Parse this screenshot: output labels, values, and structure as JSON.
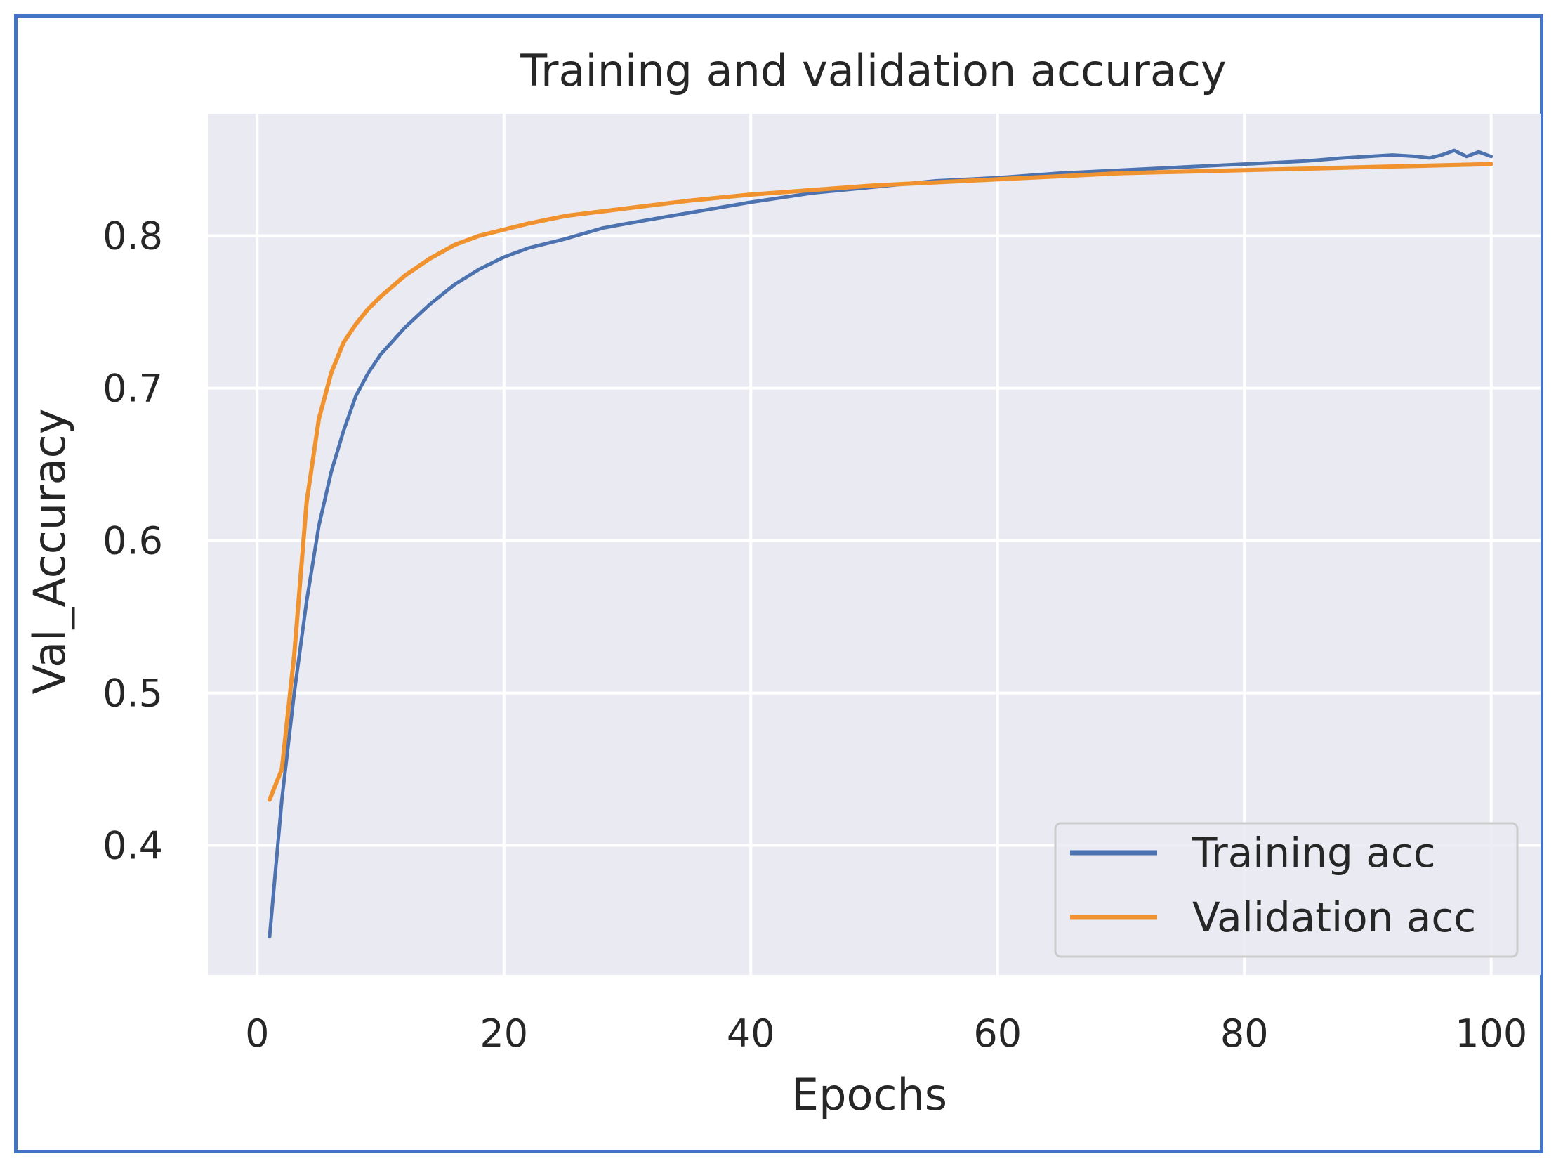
{
  "chart_data": {
    "type": "line",
    "title": "Training and validation accuracy",
    "xlabel": "Epochs",
    "ylabel": "Val_Accuracy",
    "xlim": [
      -4,
      104
    ],
    "ylim": [
      0.315,
      0.88
    ],
    "xticks": [
      0,
      20,
      40,
      60,
      80,
      100
    ],
    "xtick_labels": [
      "0",
      "20",
      "40",
      "60",
      "80",
      "100"
    ],
    "yticks": [
      0.4,
      0.5,
      0.6,
      0.7,
      0.8
    ],
    "ytick_labels": [
      "0.4",
      "0.5",
      "0.6",
      "0.7",
      "0.8"
    ],
    "grid": true,
    "legend_position": "lower-right",
    "series": [
      {
        "name": "Training acc",
        "color": "#4c72b0",
        "x": [
          1,
          2,
          3,
          4,
          5,
          6,
          7,
          8,
          9,
          10,
          12,
          14,
          16,
          18,
          20,
          22,
          25,
          28,
          30,
          35,
          40,
          45,
          50,
          55,
          60,
          65,
          70,
          75,
          80,
          85,
          88,
          90,
          92,
          94,
          95,
          96,
          97,
          98,
          99,
          100
        ],
        "y": [
          0.34,
          0.43,
          0.5,
          0.56,
          0.61,
          0.645,
          0.672,
          0.695,
          0.71,
          0.722,
          0.74,
          0.755,
          0.768,
          0.778,
          0.786,
          0.792,
          0.798,
          0.805,
          0.808,
          0.815,
          0.822,
          0.828,
          0.832,
          0.836,
          0.838,
          0.841,
          0.843,
          0.845,
          0.847,
          0.849,
          0.851,
          0.852,
          0.853,
          0.852,
          0.851,
          0.853,
          0.856,
          0.852,
          0.855,
          0.852
        ]
      },
      {
        "name": "Validation acc",
        "color": "#f0922e",
        "x": [
          1,
          2,
          3,
          4,
          5,
          6,
          7,
          8,
          9,
          10,
          12,
          14,
          16,
          18,
          20,
          22,
          25,
          28,
          30,
          35,
          40,
          45,
          50,
          55,
          60,
          65,
          70,
          75,
          80,
          85,
          90,
          95,
          100
        ],
        "y": [
          0.43,
          0.45,
          0.525,
          0.625,
          0.68,
          0.71,
          0.73,
          0.742,
          0.752,
          0.76,
          0.774,
          0.785,
          0.794,
          0.8,
          0.804,
          0.808,
          0.813,
          0.816,
          0.818,
          0.823,
          0.827,
          0.83,
          0.833,
          0.835,
          0.837,
          0.839,
          0.841,
          0.842,
          0.843,
          0.844,
          0.845,
          0.846,
          0.847
        ]
      }
    ]
  }
}
